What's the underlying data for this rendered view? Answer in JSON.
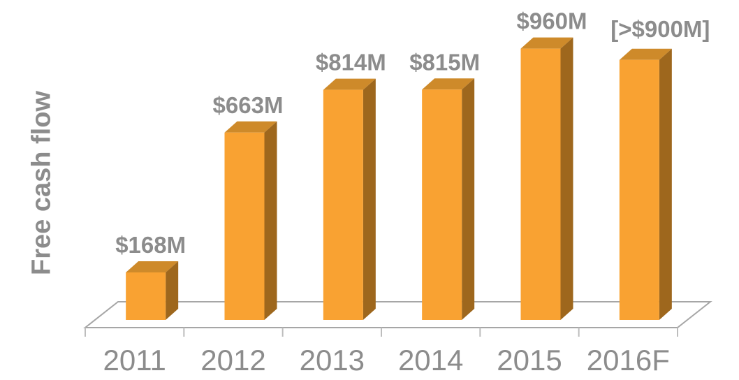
{
  "chart_data": {
    "type": "bar",
    "variant": "3d-column",
    "title": "",
    "xlabel": "",
    "ylabel": "Free cash flow",
    "units": "USD millions",
    "categories": [
      "2011",
      "2012",
      "2013",
      "2014",
      "2015",
      "2016F"
    ],
    "series": [
      {
        "name": "Free cash flow",
        "values": [
          168,
          663,
          814,
          815,
          960,
          920
        ]
      }
    ],
    "value_labels": [
      "$168M",
      "$663M",
      "$814M",
      "$815M",
      "$960M",
      "[>$900M]"
    ],
    "note": "2016F bar height read from chart as ~$920M; on-chart label shows forecast [>$900M]",
    "ylim": [
      0,
      1000
    ],
    "grid": false,
    "legend_position": "none"
  },
  "colors": {
    "bar_front": "#F9A232",
    "bar_top": "#CE8A2A",
    "bar_side": "#9E671D",
    "floor_line": "#A6A6A6",
    "tick_line": "#BDBDBD",
    "label_text": "#8C8C8C"
  }
}
